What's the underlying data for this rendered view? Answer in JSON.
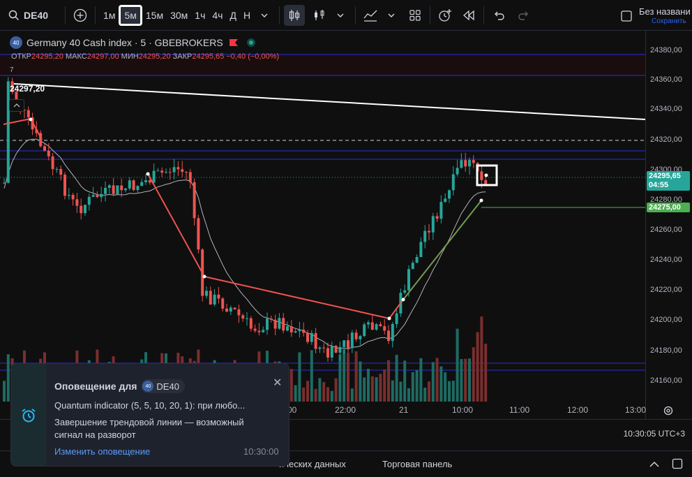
{
  "toolbar": {
    "symbol": "DE40",
    "timeframes": [
      "1м",
      "5м",
      "15м",
      "30м",
      "1ч",
      "4ч",
      "Д",
      "Н"
    ],
    "active_timeframe": "5м",
    "save_title": "Без названи",
    "save_sub": "Сохранить"
  },
  "legend": {
    "badge": "40",
    "title": "Germany 40 Cash index · 5 · GBEBROKERS",
    "open_label": "ОТКР",
    "open": "24295,20",
    "high_label": "МАКС",
    "high": "24297,00",
    "low_label": "МИН",
    "low": "24295,20",
    "close_label": "ЗАКР",
    "close": "24295,65",
    "change": "−0,40 (−0,00%)",
    "indicator_value": "24297,20",
    "count": "7"
  },
  "price_scale": {
    "ticks": [
      "24380,00",
      "24360,00",
      "24340,00",
      "24320,00",
      "24300,00",
      "24280,00",
      "24260,00",
      "24240,00",
      "24220,00",
      "24200,00",
      "24180,00",
      "24160,00"
    ],
    "current_price": "24295,65",
    "countdown": "04:55",
    "line_price": "24275,00"
  },
  "time_axis": {
    "labels": [
      "00",
      "22:00",
      "21",
      "10:00",
      "11:00",
      "12:00",
      "13:00"
    ]
  },
  "clock": "10:30:05 UTC+3",
  "bottom_panel": {
    "item1": "ических данных",
    "item2": "Торговая панель"
  },
  "notification": {
    "title": "Оповещение для",
    "symbol_badge": "40",
    "symbol": "DE40",
    "line1": "Quantum indicator (5, 5, 10, 20, 1): при любо...",
    "line2": "Завершение трендовой линии — возможный сигнал на разворот",
    "link": "Изменить оповещение",
    "time": "10:30:00"
  },
  "colors": {
    "up": "#26a69a",
    "down": "#ef5350",
    "up_volume": "#1d6b63",
    "down_volume": "#7a2e2e"
  }
}
